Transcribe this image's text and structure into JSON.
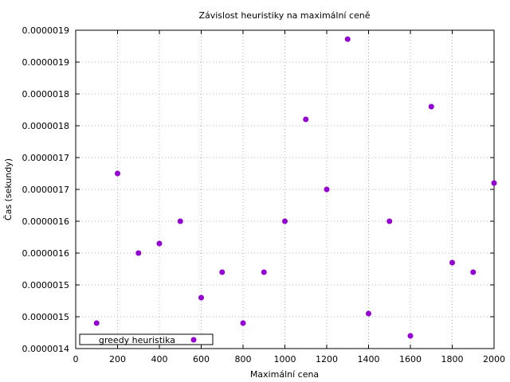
{
  "chart_data": {
    "type": "scatter",
    "title": "Závislost heuristiky na maximální ceně",
    "xlabel": "Maximální cena",
    "ylabel": "Čas (sekundy)",
    "xlim": [
      0,
      2000
    ],
    "ylim": [
      1.4e-06,
      1.9e-06
    ],
    "grid": true,
    "legend_position": "bottom-left",
    "x_ticks": [
      {
        "value": 0,
        "label": "0"
      },
      {
        "value": 200,
        "label": "200"
      },
      {
        "value": 400,
        "label": "400"
      },
      {
        "value": 600,
        "label": "600"
      },
      {
        "value": 800,
        "label": "800"
      },
      {
        "value": 1000,
        "label": "1000"
      },
      {
        "value": 1200,
        "label": "1200"
      },
      {
        "value": 1400,
        "label": "1400"
      },
      {
        "value": 1600,
        "label": "1600"
      },
      {
        "value": 1800,
        "label": "1800"
      },
      {
        "value": 2000,
        "label": "2000"
      }
    ],
    "y_ticks": [
      {
        "value": 1.4e-06,
        "label": "0.0000014"
      },
      {
        "value": 1.45e-06,
        "label": "0.0000015"
      },
      {
        "value": 1.5e-06,
        "label": "0.0000015"
      },
      {
        "value": 1.55e-06,
        "label": "0.0000016"
      },
      {
        "value": 1.6e-06,
        "label": "0.0000016"
      },
      {
        "value": 1.65e-06,
        "label": "0.0000017"
      },
      {
        "value": 1.7e-06,
        "label": "0.0000017"
      },
      {
        "value": 1.75e-06,
        "label": "0.0000018"
      },
      {
        "value": 1.8e-06,
        "label": "0.0000018"
      },
      {
        "value": 1.85e-06,
        "label": "0.0000019"
      },
      {
        "value": 1.9e-06,
        "label": "0.0000019"
      }
    ],
    "series": [
      {
        "name": "greedy heuristika",
        "color": "#9400d3",
        "points": [
          {
            "x": 100,
            "y": 1.44e-06
          },
          {
            "x": 200,
            "y": 1.675e-06
          },
          {
            "x": 300,
            "y": 1.55e-06
          },
          {
            "x": 400,
            "y": 1.565e-06
          },
          {
            "x": 500,
            "y": 1.6e-06
          },
          {
            "x": 600,
            "y": 1.48e-06
          },
          {
            "x": 700,
            "y": 1.52e-06
          },
          {
            "x": 800,
            "y": 1.44e-06
          },
          {
            "x": 900,
            "y": 1.52e-06
          },
          {
            "x": 1000,
            "y": 1.6e-06
          },
          {
            "x": 1100,
            "y": 1.76e-06
          },
          {
            "x": 1200,
            "y": 1.65e-06
          },
          {
            "x": 1300,
            "y": 1.886e-06
          },
          {
            "x": 1400,
            "y": 1.455e-06
          },
          {
            "x": 1500,
            "y": 1.6e-06
          },
          {
            "x": 1600,
            "y": 1.42e-06
          },
          {
            "x": 1700,
            "y": 1.78e-06
          },
          {
            "x": 1800,
            "y": 1.535e-06
          },
          {
            "x": 1900,
            "y": 1.52e-06
          },
          {
            "x": 2000,
            "y": 1.66e-06
          }
        ]
      }
    ]
  }
}
